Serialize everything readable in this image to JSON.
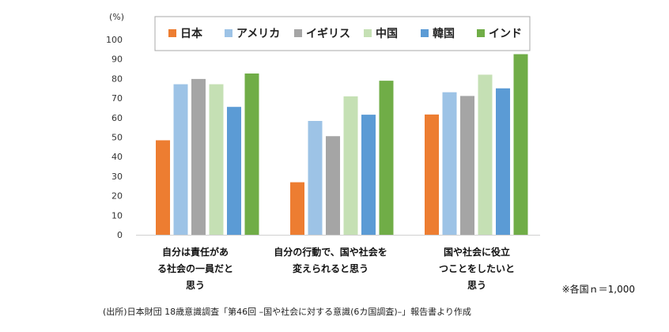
{
  "chart_data": {
    "type": "bar",
    "unit_label": "(%)",
    "ylim": [
      0,
      100
    ],
    "y_ticks": [
      0,
      10,
      20,
      30,
      40,
      50,
      60,
      70,
      80,
      90,
      100
    ],
    "grid": false,
    "legend_position": "top",
    "categories": [
      "自分は責任があ\nる社会の一員だと\n思う",
      "自分の行動で、国や社会を\n変えられると思う",
      "国や社会に役立\nつことをしたいと\n思う"
    ],
    "series": [
      {
        "name": "日本",
        "color": "#ed7d31",
        "values": [
          48.4,
          26.9,
          61.6
        ]
      },
      {
        "name": "アメリカ",
        "color": "#9dc3e6",
        "values": [
          77.1,
          58.3,
          73.0
        ]
      },
      {
        "name": "イギリス",
        "color": "#a5a5a5",
        "values": [
          79.8,
          50.5,
          71.1
        ]
      },
      {
        "name": "中国",
        "color": "#c5e0b4",
        "values": [
          77.1,
          70.9,
          82.0
        ]
      },
      {
        "name": "韓国",
        "color": "#5b9bd5",
        "values": [
          65.5,
          61.5,
          75.0
        ]
      },
      {
        "name": "インド",
        "color": "#70ad47",
        "values": [
          82.6,
          78.9,
          92.5
        ]
      }
    ]
  },
  "notes": {
    "sample": "※各国ｎ＝1,000",
    "source": "(出所)日本財団 18歳意識調査「第46回 –国や社会に対する意識(6カ国調査)–」報告書より作成"
  }
}
